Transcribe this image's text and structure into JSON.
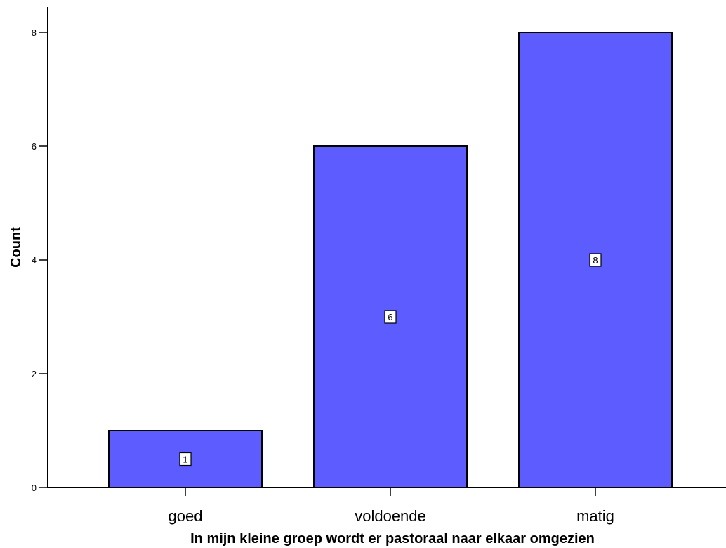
{
  "chart_data": {
    "type": "bar",
    "categories": [
      "goed",
      "voldoende",
      "matig"
    ],
    "values": [
      1,
      6,
      8
    ],
    "data_labels": [
      "1",
      "6",
      "8"
    ],
    "title": "",
    "xlabel": "In mijn kleine groep wordt er pastoraal naar elkaar omgezien",
    "ylabel": "Count",
    "ylim": [
      0,
      8
    ],
    "yticks": [
      0,
      2,
      4,
      6,
      8
    ],
    "grid": false,
    "legend": "none",
    "bar_color": "#5d5dff",
    "bar_edge_color": "#000000"
  }
}
